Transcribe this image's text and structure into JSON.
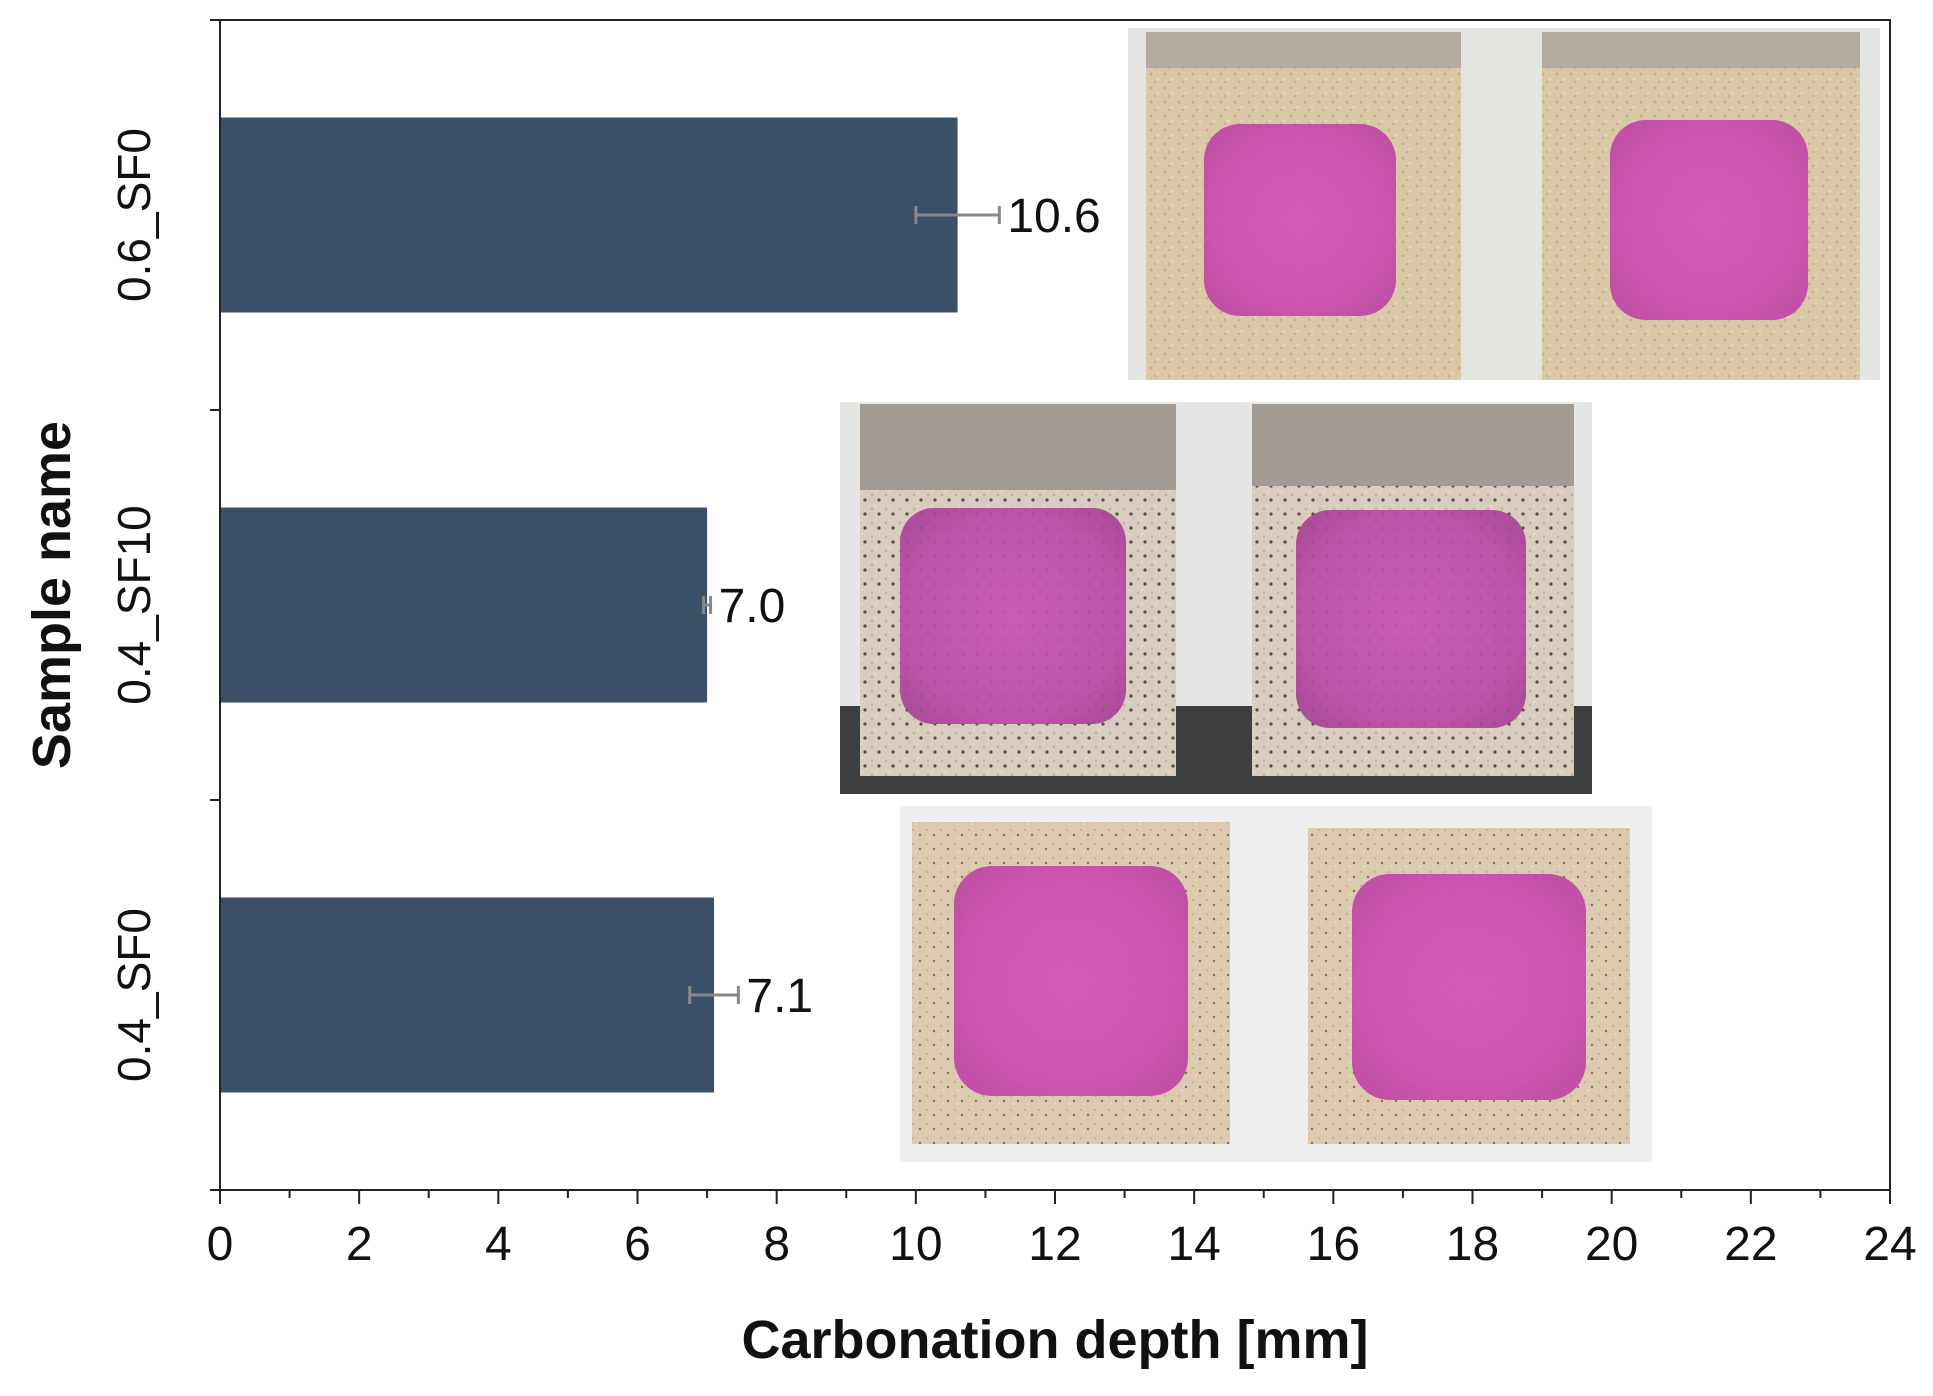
{
  "chart_data": {
    "type": "bar",
    "orientation": "horizontal",
    "categories": [
      "0.6_SF0",
      "0.4_SF10",
      "0.4_SF0"
    ],
    "values": [
      10.6,
      7.0,
      7.1
    ],
    "error": [
      0.6,
      0.05,
      0.35
    ],
    "data_labels": [
      "10.6",
      "7.0",
      "7.1"
    ],
    "xlabel": "Carbonation depth [mm]",
    "ylabel": "Sample name",
    "xlim": [
      0,
      24
    ],
    "xticks": [
      0,
      2,
      4,
      6,
      8,
      10,
      12,
      14,
      16,
      18,
      20,
      22,
      24
    ],
    "grid": false,
    "legend": "none",
    "colors": {
      "bar": "#3b4f68",
      "errorbar": "#888888",
      "axis": "#222222"
    },
    "insets": [
      {
        "category": "0.6_SF0",
        "description_icon": "specimen-photo"
      },
      {
        "category": "0.4_SF10",
        "description_icon": "specimen-photo"
      },
      {
        "category": "0.4_SF0",
        "description_icon": "specimen-photo"
      }
    ]
  }
}
